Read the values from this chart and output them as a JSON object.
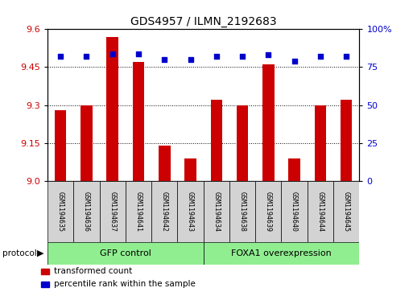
{
  "title": "GDS4957 / ILMN_2192683",
  "samples": [
    "GSM1194635",
    "GSM1194636",
    "GSM1194637",
    "GSM1194641",
    "GSM1194642",
    "GSM1194643",
    "GSM1194634",
    "GSM1194638",
    "GSM1194639",
    "GSM1194640",
    "GSM1194644",
    "GSM1194645"
  ],
  "transformed_counts": [
    9.28,
    9.3,
    9.57,
    9.47,
    9.14,
    9.09,
    9.32,
    9.3,
    9.46,
    9.09,
    9.3,
    9.32
  ],
  "percentile_ranks": [
    82,
    82,
    84,
    84,
    80,
    80,
    82,
    82,
    83,
    79,
    82,
    82
  ],
  "groups": [
    {
      "label": "GFP control",
      "start": 0,
      "end": 6
    },
    {
      "label": "FOXA1 overexpression",
      "start": 6,
      "end": 12
    }
  ],
  "ylim_left": [
    9.0,
    9.6
  ],
  "ylim_right": [
    0,
    100
  ],
  "yticks_left": [
    9.0,
    9.15,
    9.3,
    9.45,
    9.6
  ],
  "yticks_right": [
    0,
    25,
    50,
    75,
    100
  ],
  "bar_color": "#cc0000",
  "dot_color": "#0000cc",
  "bar_bottom": 9.0,
  "sample_bg_color": "#d3d3d3",
  "group_bg_color": "#90ee90",
  "protocol_label": "protocol",
  "legend_items": [
    {
      "label": "transformed count",
      "color": "#cc0000"
    },
    {
      "label": "percentile rank within the sample",
      "color": "#0000cc"
    }
  ]
}
